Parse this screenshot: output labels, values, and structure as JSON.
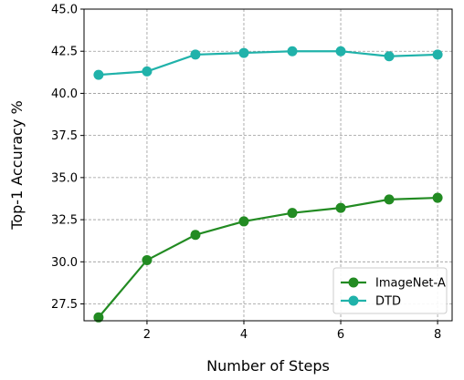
{
  "chart_data": {
    "type": "line",
    "title": "",
    "xlabel": "Number of Steps",
    "ylabel": "Top-1 Accuracy %",
    "x": [
      1,
      2,
      3,
      4,
      5,
      6,
      7,
      8
    ],
    "xticks": [
      2,
      4,
      6,
      8
    ],
    "xlim": [
      0.7,
      8.3
    ],
    "ylim": [
      26.5,
      45.0
    ],
    "yticks": [
      27.5,
      30.0,
      32.5,
      35.0,
      37.5,
      40.0,
      42.5,
      45.0
    ],
    "grid": true,
    "legend_position": "bottom-right",
    "series": [
      {
        "name": "ImageNet-A",
        "color": "#228b22",
        "values": [
          26.7,
          30.1,
          31.6,
          32.4,
          32.9,
          33.2,
          33.7,
          33.8
        ]
      },
      {
        "name": "DTD",
        "color": "#20b2aa",
        "values": [
          41.1,
          41.3,
          42.3,
          42.4,
          42.5,
          42.5,
          42.2,
          42.3
        ]
      }
    ]
  }
}
